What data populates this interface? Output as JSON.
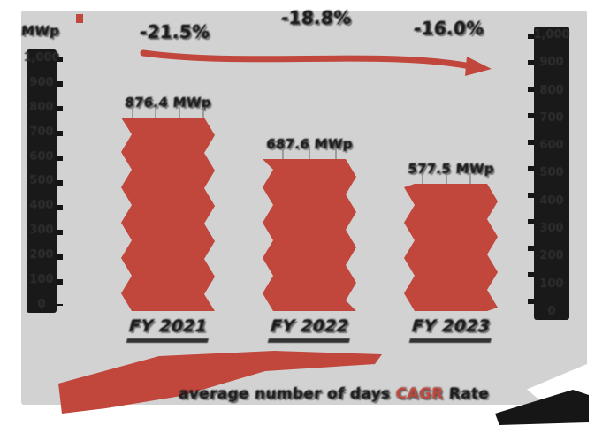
{
  "axes": {
    "unit_label": "MWp",
    "yticks": [
      "1,000",
      "900",
      "800",
      "700",
      "600",
      "500",
      "400",
      "300",
      "200",
      "100",
      "0"
    ]
  },
  "annotations": {
    "change_fy21_fy22": "-21.5%",
    "cagr": "-18.8%",
    "change_fy22_fy23": "-16.0%"
  },
  "chart_data": {
    "type": "bar",
    "categories": [
      "FY 2021",
      "FY 2022",
      "FY 2023"
    ],
    "values": [
      876.4,
      687.6,
      577.5
    ],
    "unit": "MWp",
    "bar_labels": [
      "876.4 MWp",
      "687.6 MWp",
      "577.5 MWp"
    ],
    "ylabel": "MWp",
    "ylim": [
      0,
      1000
    ],
    "grid": false,
    "legend_position": "bottom-left",
    "annotations": [
      "-21.5% change FY2021 to FY2022",
      "-16.0% change FY2022 to FY2023",
      "CAGR -18.8% with declining red trend arrow"
    ]
  },
  "footer": {
    "text_left": "average number of days",
    "text_highlight": "CAGR",
    "text_right": "Rate"
  },
  "colors": {
    "bar": "#c1463c",
    "accent_red": "#c1463c",
    "panel": "#d2d2d2",
    "ink": "#1c1c1c",
    "axis_band": "#191919"
  }
}
